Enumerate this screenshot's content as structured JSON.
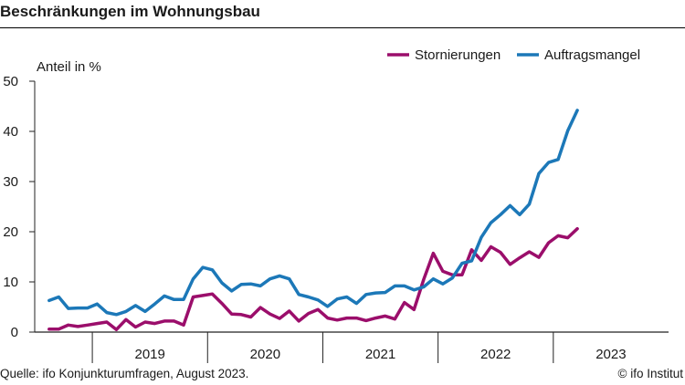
{
  "colors": {
    "stornierungen": "#9b0e6b",
    "auftragsmangel": "#1c78b8",
    "axis": "#222222"
  },
  "source": "Quelle: ifo Konjunkturumfragen, August 2023.",
  "credit": "© ifo Institut",
  "chart_data": {
    "type": "line",
    "title": "Beschränkungen im Wohnungsbau",
    "ylabel": "Anteil in %",
    "xlabel": "",
    "ylim": [
      0,
      50
    ],
    "yticks": [
      "0",
      "10",
      "20",
      "30",
      "40",
      "50"
    ],
    "grid": false,
    "legend_position": "top-right",
    "xticks": [
      "2019",
      "2020",
      "2021",
      "2022",
      "2023"
    ],
    "x_start": "2018-07",
    "x_end": "2023-12",
    "series": [
      {
        "name": "Stornierungen",
        "color": "#9b0e6b",
        "start": "2018-08",
        "values": [
          0.6,
          0.6,
          1.4,
          1.1,
          1.4,
          1.7,
          2.0,
          0.5,
          2.5,
          1.0,
          2.0,
          1.7,
          2.2,
          2.2,
          1.4,
          7.0,
          7.3,
          7.6,
          5.7,
          3.6,
          3.5,
          3.0,
          4.9,
          3.6,
          2.7,
          4.2,
          2.2,
          3.7,
          4.5,
          2.8,
          2.4,
          2.8,
          2.8,
          2.3,
          2.8,
          3.2,
          2.6,
          5.9,
          4.5,
          10.5,
          15.7,
          12.1,
          11.4,
          11.4,
          16.4,
          14.3,
          17.0,
          15.9,
          13.5,
          14.8,
          16.0,
          14.9,
          17.8,
          19.2,
          18.8,
          20.6
        ]
      },
      {
        "name": "Auftragsmangel",
        "color": "#1c78b8",
        "start": "2018-08",
        "values": [
          6.3,
          7.0,
          4.7,
          4.8,
          4.8,
          5.6,
          3.9,
          3.5,
          4.1,
          5.3,
          4.1,
          5.6,
          7.2,
          6.5,
          6.5,
          10.6,
          12.9,
          12.4,
          9.8,
          8.2,
          9.5,
          9.6,
          9.2,
          10.6,
          11.2,
          10.6,
          7.5,
          7.0,
          6.4,
          5.1,
          6.6,
          7.0,
          5.7,
          7.5,
          7.8,
          7.9,
          9.2,
          9.2,
          8.4,
          9.0,
          10.6,
          9.6,
          10.8,
          13.7,
          14.2,
          18.9,
          21.8,
          23.4,
          25.2,
          23.4,
          25.5,
          31.6,
          33.8,
          34.4,
          40.1,
          44.2
        ]
      }
    ]
  }
}
